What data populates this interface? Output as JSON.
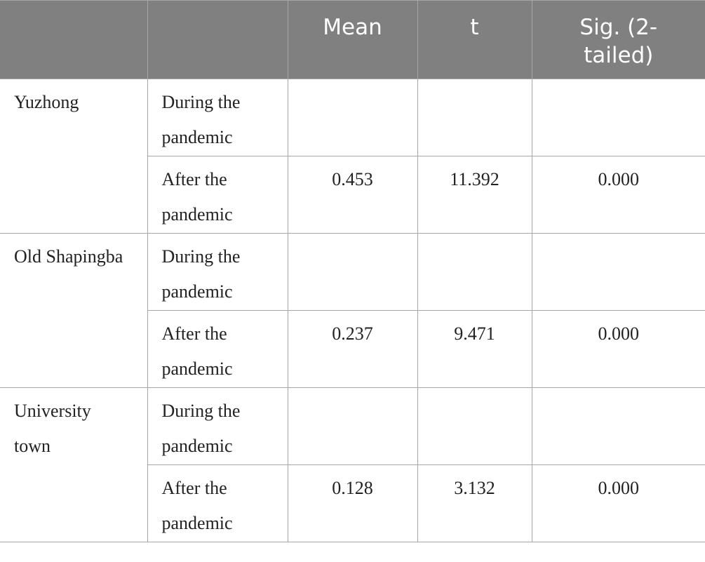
{
  "table": {
    "header": [
      "Mean",
      "t",
      "Sig. (2-tailed)"
    ],
    "groups": [
      {
        "site": "Yuzhong",
        "rows": [
          {
            "period": "During the pandemic"
          },
          {
            "period": "After the pandemic",
            "mean": "0.453",
            "t": "11.392",
            "sig": "0.000"
          }
        ]
      },
      {
        "site": "Old Shapingba",
        "rows": [
          {
            "period": "During the pandemic"
          },
          {
            "period": "After the pandemic",
            "mean": "0.237",
            "t": "9.471",
            "sig": "0.000"
          }
        ]
      },
      {
        "site": "University town",
        "rows": [
          {
            "period": "During the pandemic"
          },
          {
            "period": "After the pandemic",
            "mean": "0.128",
            "t": "3.132",
            "sig": "0.000"
          }
        ]
      }
    ]
  }
}
